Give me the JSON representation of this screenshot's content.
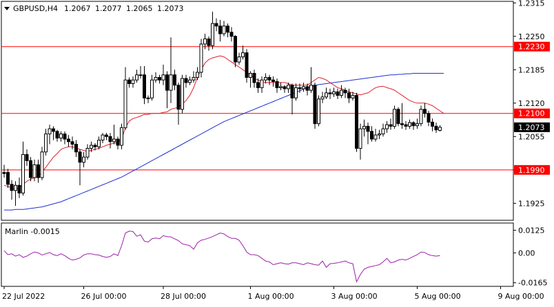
{
  "header": {
    "symbol": "GBPUSD,H4",
    "open": "1.2067",
    "high": "1.2077",
    "low": "1.2065",
    "close": "1.2073"
  },
  "colors": {
    "background": "#ffffff",
    "frame": "#000000",
    "candle": "#000000",
    "level_line": "#ff0000",
    "fast_ma": "#e0202a",
    "slow_ma": "#1f2fd0",
    "oscillator": "#9b1fa8",
    "price_badge": "#000000",
    "level_badge": "#ff0000"
  },
  "chart_data": {
    "type": "candlestick",
    "symbol": "GBPUSD",
    "timeframe": "H4",
    "ylim": [
      1.1892,
      1.2318
    ],
    "price_ticks": [
      "1.2315",
      "1.2250",
      "1.2185",
      "1.2120",
      "1.2055",
      "1.1990",
      "1.1925"
    ],
    "x_labels": [
      "22 Jul 2022",
      "26 Jul 00:00",
      "28 Jul 00:00",
      "1 Aug 00:00",
      "3 Aug 00:00",
      "5 Aug 00:00",
      "9 Aug 00:00"
    ],
    "x_label_index": [
      0,
      21,
      42,
      65,
      87,
      109,
      131
    ],
    "horizontal_levels": [
      {
        "value": 1.223,
        "label": "1.2230"
      },
      {
        "value": 1.21,
        "label": "1.2100"
      },
      {
        "value": 1.199,
        "label": "1.1990"
      }
    ],
    "current_price": {
      "value": 1.2073,
      "label": "1.2073"
    },
    "candles": [
      [
        1.1985,
        1.1983,
        1.1975,
        1.2
      ],
      [
        1.1985,
        1.1962,
        1.1955,
        1.1992
      ],
      [
        1.1962,
        1.195,
        1.1932,
        1.197
      ],
      [
        1.195,
        1.196,
        1.192,
        1.1968
      ],
      [
        1.196,
        1.1945,
        1.1935,
        1.1975
      ],
      [
        1.1945,
        1.202,
        1.194,
        1.2045
      ],
      [
        1.202,
        1.2008,
        1.1998,
        1.203
      ],
      [
        1.2008,
        1.1975,
        1.1968,
        1.2015
      ],
      [
        1.1975,
        1.2,
        1.1968,
        1.201
      ],
      [
        1.2,
        1.1975,
        1.1965,
        1.201
      ],
      [
        1.1975,
        1.2025,
        1.197,
        1.2035
      ],
      [
        1.2025,
        1.206,
        1.2018,
        1.207
      ],
      [
        1.206,
        1.207,
        1.204,
        1.2078
      ],
      [
        1.207,
        1.2065,
        1.2048,
        1.2075
      ],
      [
        1.2065,
        1.2052,
        1.2045,
        1.2068
      ],
      [
        1.2052,
        1.206,
        1.2045,
        1.2065
      ],
      [
        1.206,
        1.205,
        1.204,
        1.2065
      ],
      [
        1.205,
        1.2045,
        1.2035,
        1.2058
      ],
      [
        1.2045,
        1.204,
        1.203,
        1.2055
      ],
      [
        1.204,
        1.2025,
        1.2015,
        1.2048
      ],
      [
        1.2025,
        1.2005,
        1.196,
        1.203
      ],
      [
        1.2005,
        1.2015,
        1.1995,
        1.2025
      ],
      [
        1.2015,
        1.2032,
        1.201,
        1.204
      ],
      [
        1.2032,
        1.2038,
        1.2025,
        1.2045
      ],
      [
        1.2038,
        1.2035,
        1.2028,
        1.2042
      ],
      [
        1.2035,
        1.2048,
        1.203,
        1.2055
      ],
      [
        1.2048,
        1.2058,
        1.2042,
        1.2062
      ],
      [
        1.2058,
        1.2055,
        1.2048,
        1.2062
      ],
      [
        1.2055,
        1.2045,
        1.2032,
        1.2062
      ],
      [
        1.2045,
        1.205,
        1.204,
        1.2078
      ],
      [
        1.205,
        1.2038,
        1.203,
        1.2055
      ],
      [
        1.2038,
        1.2072,
        1.203,
        1.208
      ],
      [
        1.2072,
        1.2165,
        1.2068,
        1.219
      ],
      [
        1.2165,
        1.2158,
        1.215,
        1.217
      ],
      [
        1.2158,
        1.2165,
        1.215,
        1.2172
      ],
      [
        1.2165,
        1.2175,
        1.216,
        1.2185
      ],
      [
        1.2175,
        1.2175,
        1.2168,
        1.2192
      ],
      [
        1.2175,
        1.213,
        1.2118,
        1.2192
      ],
      [
        1.213,
        1.213,
        1.212,
        1.2135
      ],
      [
        1.213,
        1.2165,
        1.2125,
        1.2175
      ],
      [
        1.2165,
        1.217,
        1.216,
        1.218
      ],
      [
        1.217,
        1.2165,
        1.2158,
        1.2175
      ],
      [
        1.2165,
        1.2175,
        1.2155,
        1.2195
      ],
      [
        1.2175,
        1.2145,
        1.211,
        1.2182
      ],
      [
        1.2145,
        1.2175,
        1.212,
        1.2248
      ],
      [
        1.2175,
        1.2155,
        1.2145,
        1.2185
      ],
      [
        1.2155,
        1.2108,
        1.2078,
        1.216
      ],
      [
        1.2108,
        1.2168,
        1.21,
        1.2175
      ],
      [
        1.2168,
        1.216,
        1.215,
        1.2175
      ],
      [
        1.216,
        1.2165,
        1.2155,
        1.2172
      ],
      [
        1.2165,
        1.217,
        1.216,
        1.2182
      ],
      [
        1.217,
        1.218,
        1.2165,
        1.219
      ],
      [
        1.218,
        1.2235,
        1.217,
        1.2245
      ],
      [
        1.2235,
        1.2245,
        1.2225,
        1.2255
      ],
      [
        1.2245,
        1.2232,
        1.2222,
        1.225
      ],
      [
        1.2232,
        1.2275,
        1.2225,
        1.2298
      ],
      [
        1.2275,
        1.227,
        1.226,
        1.2285
      ],
      [
        1.227,
        1.2255,
        1.224,
        1.2282
      ],
      [
        1.2255,
        1.227,
        1.225,
        1.228
      ],
      [
        1.227,
        1.2258,
        1.2248,
        1.2275
      ],
      [
        1.2258,
        1.225,
        1.224,
        1.2268
      ],
      [
        1.225,
        1.22,
        1.219,
        1.2252
      ],
      [
        1.22,
        1.221,
        1.2195,
        1.2218
      ],
      [
        1.221,
        1.2218,
        1.2205,
        1.2232
      ],
      [
        1.2218,
        1.217,
        1.216,
        1.2225
      ],
      [
        1.217,
        1.2178,
        1.215,
        1.2182
      ],
      [
        1.2178,
        1.216,
        1.215,
        1.2185
      ],
      [
        1.216,
        1.215,
        1.214,
        1.2168
      ],
      [
        1.215,
        1.2165,
        1.214,
        1.2172
      ],
      [
        1.2165,
        1.217,
        1.2158,
        1.2178
      ],
      [
        1.217,
        1.2165,
        1.2155,
        1.2175
      ],
      [
        1.2165,
        1.2162,
        1.2152,
        1.2172
      ],
      [
        1.2162,
        1.215,
        1.214,
        1.2168
      ],
      [
        1.215,
        1.2152,
        1.2145,
        1.216
      ],
      [
        1.2152,
        1.2148,
        1.214,
        1.2155
      ],
      [
        1.2148,
        1.2155,
        1.214,
        1.216
      ],
      [
        1.2155,
        1.213,
        1.2098,
        1.2158
      ],
      [
        1.213,
        1.215,
        1.2125,
        1.2158
      ],
      [
        1.215,
        1.2148,
        1.214,
        1.2158
      ],
      [
        1.2148,
        1.2152,
        1.2142,
        1.216
      ],
      [
        1.2152,
        1.2145,
        1.2135,
        1.2158
      ],
      [
        1.2145,
        1.2155,
        1.214,
        1.219
      ],
      [
        1.2155,
        1.208,
        1.207,
        1.216
      ],
      [
        1.208,
        1.2128,
        1.2075,
        1.2135
      ],
      [
        1.2128,
        1.2132,
        1.212,
        1.2142
      ],
      [
        1.2132,
        1.214,
        1.2128,
        1.215
      ],
      [
        1.214,
        1.2138,
        1.2128,
        1.2148
      ],
      [
        1.2138,
        1.2142,
        1.2132,
        1.215
      ],
      [
        1.2142,
        1.2135,
        1.2128,
        1.2148
      ],
      [
        1.2135,
        1.2145,
        1.213,
        1.2155
      ],
      [
        1.2145,
        1.214,
        1.213,
        1.215
      ],
      [
        1.214,
        1.213,
        1.212,
        1.2148
      ],
      [
        1.213,
        1.2135,
        1.2125,
        1.2142
      ],
      [
        1.2135,
        1.2032,
        1.2025,
        1.214
      ],
      [
        1.2032,
        1.207,
        1.201,
        1.208
      ],
      [
        1.207,
        1.2075,
        1.2055,
        1.2088
      ],
      [
        1.2075,
        1.2065,
        1.204,
        1.2082
      ],
      [
        1.2065,
        1.205,
        1.2045,
        1.2075
      ],
      [
        1.205,
        1.2058,
        1.2045,
        1.207
      ],
      [
        1.2058,
        1.206,
        1.205,
        1.2068
      ],
      [
        1.206,
        1.207,
        1.2055,
        1.208
      ],
      [
        1.207,
        1.2078,
        1.2062,
        1.2085
      ],
      [
        1.2078,
        1.2075,
        1.2068,
        1.209
      ],
      [
        1.2075,
        1.2108,
        1.207,
        1.2115
      ],
      [
        1.2108,
        1.208,
        1.2075,
        1.2112
      ],
      [
        1.208,
        1.2078,
        1.207,
        1.212
      ],
      [
        1.2078,
        1.2075,
        1.2068,
        1.2085
      ],
      [
        1.2075,
        1.2082,
        1.207,
        1.2088
      ],
      [
        1.2082,
        1.2076,
        1.2068,
        1.2085
      ],
      [
        1.2076,
        1.208,
        1.207,
        1.209
      ],
      [
        1.208,
        1.2108,
        1.2075,
        1.2115
      ],
      [
        1.2108,
        1.21,
        1.2092,
        1.212
      ],
      [
        1.21,
        1.2083,
        1.2075,
        1.2105
      ],
      [
        1.2083,
        1.2075,
        1.2065,
        1.209
      ],
      [
        1.2075,
        1.2068,
        1.2062,
        1.2082
      ],
      [
        1.2067,
        1.2073,
        1.2065,
        1.2077
      ]
    ],
    "fast_ma": [
      1.196,
      1.1958,
      1.1955,
      1.1952,
      1.1955,
      1.1962,
      1.1968,
      1.1972,
      1.1975,
      1.1978,
      1.1985,
      1.1995,
      1.2005,
      1.2015,
      1.2022,
      1.203,
      1.2033,
      1.2035,
      1.2035,
      1.2033,
      1.203,
      1.2028,
      1.2026,
      1.2028,
      1.203,
      1.2032,
      1.2035,
      1.2038,
      1.204,
      1.2042,
      1.2043,
      1.205,
      1.2072,
      1.2085,
      1.209,
      1.2092,
      1.2095,
      1.2098,
      1.2098,
      1.21,
      1.21,
      1.21,
      1.2102,
      1.2103,
      1.2108,
      1.211,
      1.2112,
      1.2118,
      1.2125,
      1.2135,
      1.215,
      1.217,
      1.2185,
      1.2198,
      1.2205,
      1.2208,
      1.221,
      1.2212,
      1.221,
      1.2205,
      1.22,
      1.2195,
      1.219,
      1.2185,
      1.218,
      1.2175,
      1.2168,
      1.2165,
      1.2162,
      1.216,
      1.216,
      1.216,
      1.216,
      1.216,
      1.216,
      1.2158,
      1.2155,
      1.2155,
      1.2155,
      1.2155,
      1.2155,
      1.216,
      1.2165,
      1.217,
      1.2168,
      1.2165,
      1.216,
      1.2155,
      1.215,
      1.2148,
      1.2145,
      1.2142,
      1.214,
      1.2138,
      1.2136,
      1.2138,
      1.214,
      1.2145,
      1.215,
      1.2152,
      1.2153,
      1.215,
      1.2148,
      1.2145,
      1.214,
      1.2135,
      1.213,
      1.2125,
      1.2122,
      1.212,
      1.212,
      1.212,
      1.2118,
      1.2115,
      1.211,
      1.2105,
      1.21
    ],
    "slow_ma": [
      1.1912,
      1.1912,
      1.1912,
      1.1913,
      1.1913,
      1.1913,
      1.1914,
      1.1915,
      1.1916,
      1.1917,
      1.1918,
      1.192,
      1.1922,
      1.1924,
      1.1926,
      1.1928,
      1.1931,
      1.1934,
      1.1937,
      1.194,
      1.1943,
      1.1946,
      1.1949,
      1.1952,
      1.1955,
      1.1958,
      1.1961,
      1.1964,
      1.1967,
      1.197,
      1.1973,
      1.1976,
      1.198,
      1.1984,
      1.1988,
      1.1992,
      1.1996,
      1.2,
      1.2004,
      1.2008,
      1.2012,
      1.2016,
      1.202,
      1.2024,
      1.2028,
      1.2032,
      1.2036,
      1.204,
      1.2044,
      1.2048,
      1.2052,
      1.2056,
      1.206,
      1.2064,
      1.2068,
      1.2072,
      1.2076,
      1.208,
      1.2084,
      1.2087,
      1.209,
      1.2093,
      1.2096,
      1.2099,
      1.2102,
      1.2105,
      1.2108,
      1.2111,
      1.2114,
      1.2117,
      1.212,
      1.2123,
      1.2126,
      1.2129,
      1.2132,
      1.2135,
      1.2138,
      1.2141,
      1.2144,
      1.2147,
      1.215,
      1.2152,
      1.2154,
      1.2156,
      1.2157,
      1.2158,
      1.2159,
      1.216,
      1.2161,
      1.2162,
      1.2163,
      1.2164,
      1.2165,
      1.2166,
      1.2167,
      1.2168,
      1.2169,
      1.217,
      1.2171,
      1.2172,
      1.2173,
      1.2174,
      1.2175,
      1.2175,
      1.2176,
      1.2176,
      1.2177,
      1.2177,
      1.2178,
      1.2178,
      1.2178,
      1.2178,
      1.2178,
      1.2178,
      1.2178,
      1.2178,
      1.2178
    ],
    "oscillator": {
      "name": "Marlin",
      "label": "Marlin -0.0015",
      "value": "-0.0015",
      "ylim": [
        -0.0185,
        0.0165
      ],
      "ticks": [
        "0.0125",
        "0.00",
        "-0.0165"
      ],
      "values": [
        0.0012,
        -0.001,
        -0.0005,
        -0.0018,
        -0.001,
        -0.0025,
        -0.0018,
        -0.0005,
        0.0005,
        0.0,
        -0.0012,
        -0.0005,
        0.0002,
        -0.001,
        -0.0015,
        -0.0005,
        -0.0015,
        -0.003,
        -0.004,
        -0.0035,
        -0.0028,
        -0.0012,
        -0.0005,
        -0.0005,
        -0.001,
        -0.0012,
        -0.002,
        -0.0025,
        -0.002,
        -0.0005,
        -0.0015,
        0.004,
        0.011,
        0.012,
        0.0118,
        0.0092,
        0.01,
        0.0065,
        0.006,
        0.0078,
        0.0082,
        0.0078,
        0.0095,
        0.009,
        0.0088,
        0.0078,
        0.0068,
        0.005,
        0.0045,
        0.004,
        0.002,
        0.0055,
        0.007,
        0.0075,
        0.0082,
        0.009,
        0.01,
        0.011,
        0.0105,
        0.009,
        0.008,
        0.008,
        0.007,
        0.004,
        0.0005,
        -0.001,
        -0.001,
        -0.0015,
        -0.003,
        -0.0045,
        -0.005,
        -0.0065,
        -0.006,
        -0.0055,
        -0.006,
        -0.0062,
        -0.0055,
        -0.0055,
        -0.006,
        -0.0065,
        -0.0055,
        -0.006,
        -0.0065,
        -0.0068,
        -0.0045,
        -0.008,
        -0.006,
        -0.0058,
        -0.0055,
        -0.005,
        -0.0045,
        -0.0055,
        -0.006,
        -0.016,
        -0.012,
        -0.009,
        -0.008,
        -0.0075,
        -0.007,
        -0.0065,
        -0.005,
        -0.003,
        -0.0055,
        -0.005,
        -0.004,
        -0.0035,
        -0.004,
        -0.003,
        -0.002,
        -0.001,
        0.0005,
        0.0002,
        -0.001,
        -0.0015,
        -0.0018,
        -0.0015
      ]
    }
  }
}
